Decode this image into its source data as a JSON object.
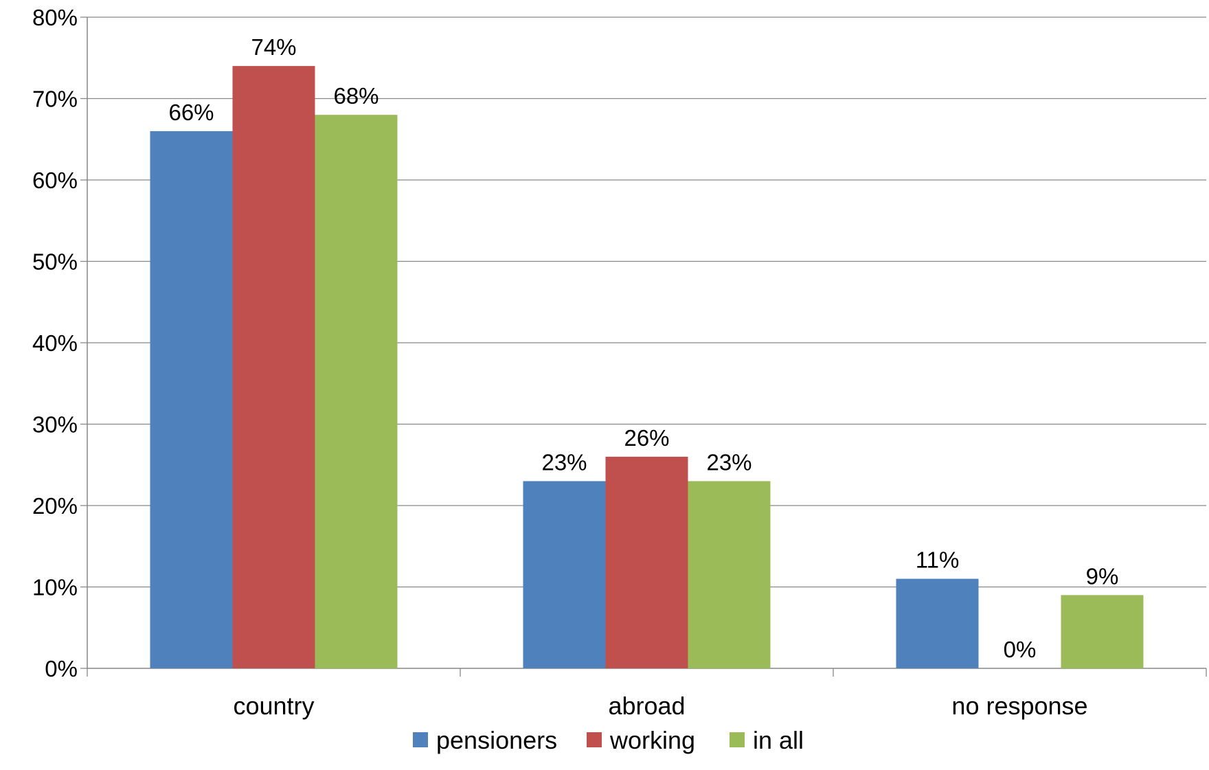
{
  "chart_data": {
    "type": "bar",
    "title": "",
    "xlabel": "",
    "ylabel": "",
    "categories": [
      "country",
      "abroad",
      "no response"
    ],
    "series": [
      {
        "name": "pensioners",
        "color": "#4F81BD",
        "values": [
          66,
          23,
          11
        ],
        "labels": [
          "66%",
          "23%",
          "11%"
        ]
      },
      {
        "name": "working",
        "color": "#C0504D",
        "values": [
          74,
          26,
          0
        ],
        "labels": [
          "74%",
          "26%",
          "0%"
        ]
      },
      {
        "name": "in all",
        "color": "#9BBB59",
        "values": [
          68,
          23,
          9
        ],
        "labels": [
          "68%",
          "23%",
          "9%"
        ]
      }
    ],
    "ylim": [
      0,
      80
    ],
    "yticks": [
      "0%",
      "10%",
      "20%",
      "30%",
      "40%",
      "50%",
      "60%",
      "70%",
      "80%"
    ],
    "grid": true,
    "legend_position": "bottom"
  }
}
